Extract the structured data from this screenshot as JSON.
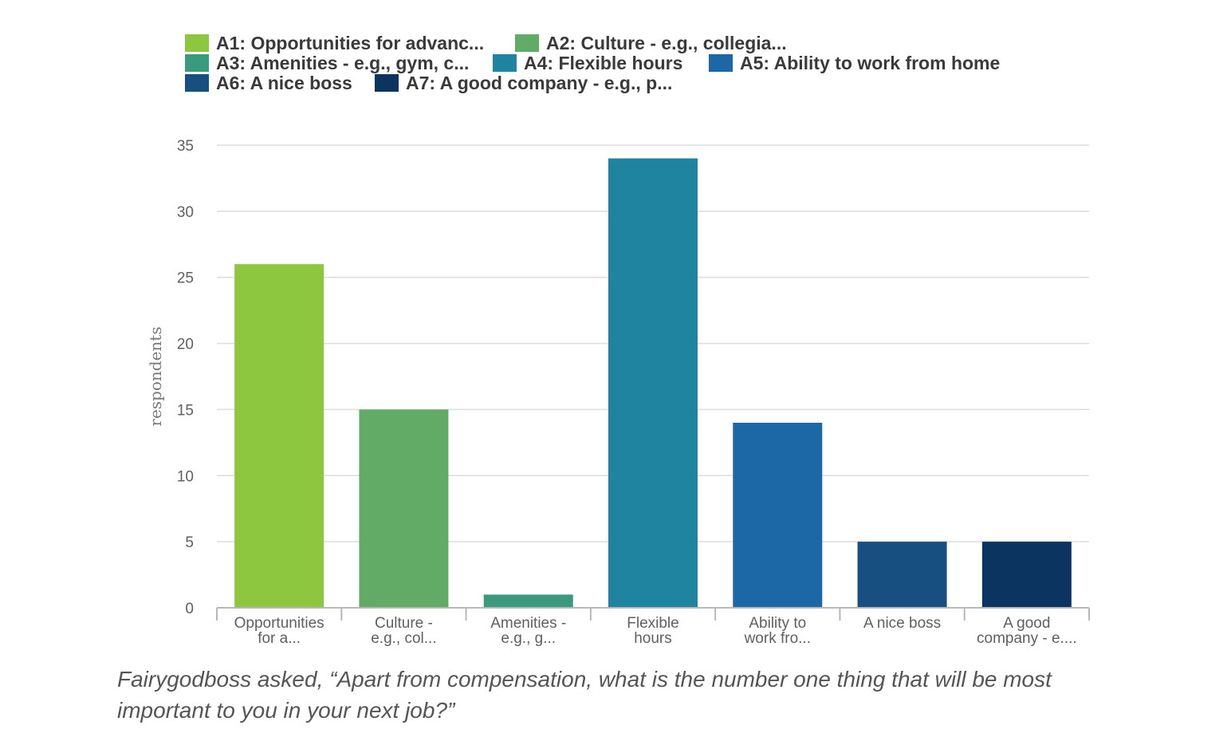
{
  "chart_data": {
    "type": "bar",
    "ylabel": "respondents",
    "ylim": [
      0,
      35
    ],
    "yticks": [
      0,
      5,
      10,
      15,
      20,
      25,
      30,
      35
    ],
    "grid": true,
    "legend_placement": "top",
    "legend": [
      {
        "label": "A1: Opportunities for advanc...",
        "color": "#8dc63f"
      },
      {
        "label": "A2: Culture - e.g., collegia...",
        "color": "#62ab66"
      },
      {
        "label": "A3: Amenities - e.g., gym, c...",
        "color": "#3a9a7e"
      },
      {
        "label": "A4: Flexible hours",
        "color": "#1f84a0"
      },
      {
        "label": "A5: Ability to work from home",
        "color": "#1c68a6"
      },
      {
        "label": "A6: A nice boss",
        "color": "#174f80"
      },
      {
        "label": "A7: A good company - e.g., p...",
        "color": "#0b3460"
      }
    ],
    "categories": [
      [
        "Opportunities",
        "for a..."
      ],
      [
        "Culture -",
        "e.g., col..."
      ],
      [
        "Amenities -",
        "e.g., g..."
      ],
      [
        "Flexible",
        "hours"
      ],
      [
        "Ability to",
        "work fro..."
      ],
      [
        "A nice boss"
      ],
      [
        "A good",
        "company - e...."
      ]
    ],
    "values": [
      26,
      15,
      1,
      34,
      14,
      5,
      5
    ],
    "colors": [
      "#8dc63f",
      "#62ab66",
      "#3a9a7e",
      "#1f84a0",
      "#1c68a6",
      "#174f80",
      "#0b3460"
    ]
  },
  "caption": "Fairygodboss asked, “Apart from compensation, what is the number one thing that will be most important to you in your next job?”"
}
